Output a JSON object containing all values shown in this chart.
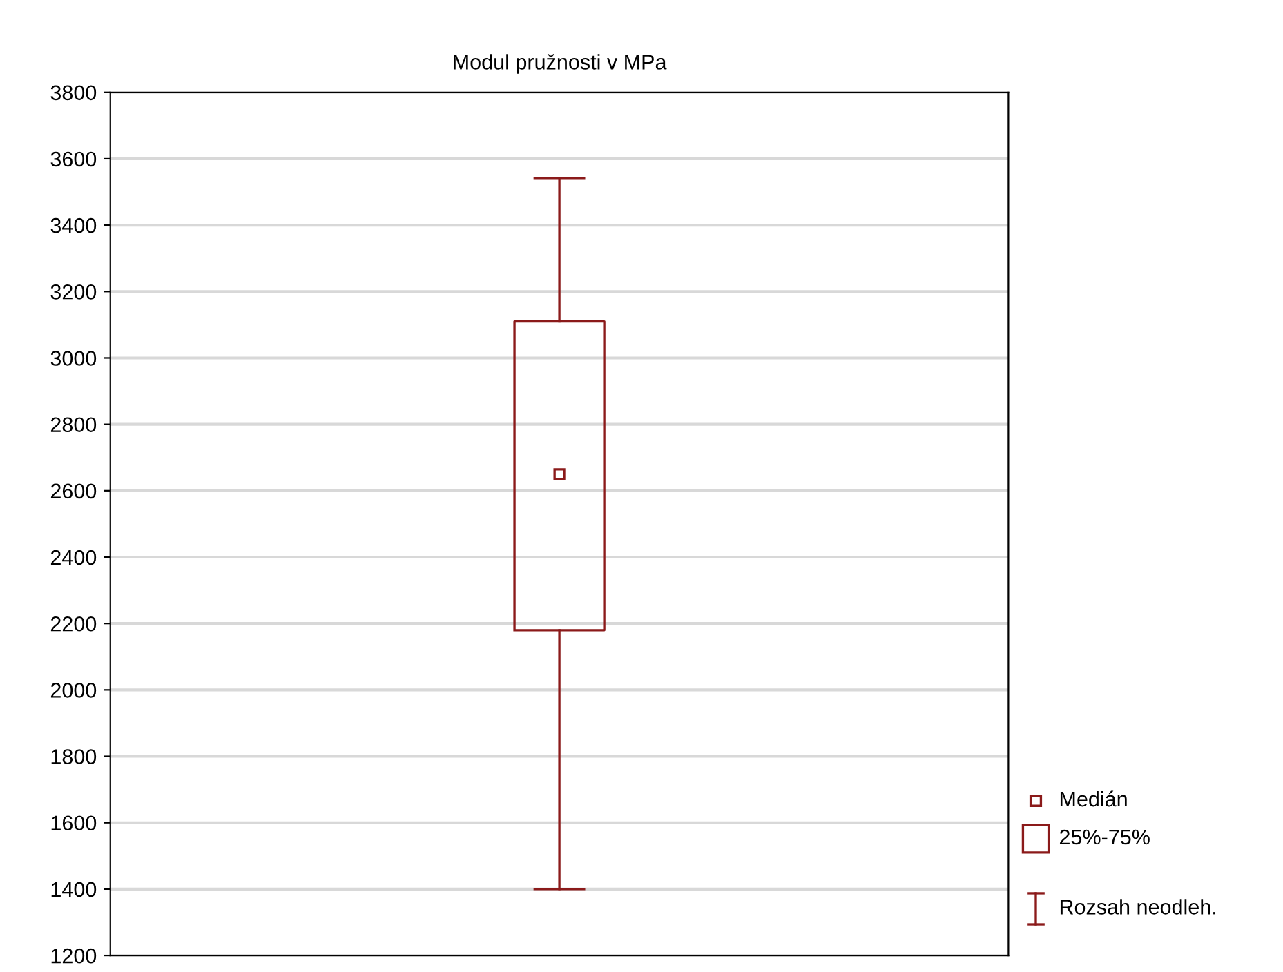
{
  "chart_data": {
    "type": "box",
    "title": "Modul pružnosti v MPa",
    "categories": [
      null
    ],
    "boxes": [
      {
        "low": 1400,
        "q1": 2180,
        "median": 2650,
        "q3": 3110,
        "high": 3540
      }
    ],
    "color": "#8b1a1a",
    "ylim": [
      1200,
      3800
    ],
    "yticks": [
      1200,
      1400,
      1600,
      1800,
      2000,
      2200,
      2400,
      2600,
      2800,
      3000,
      3200,
      3400,
      3600,
      3800
    ],
    "grid": "y",
    "annotations": [
      "Medián",
      "25%-75%",
      "Rozsah neodleh."
    ]
  }
}
